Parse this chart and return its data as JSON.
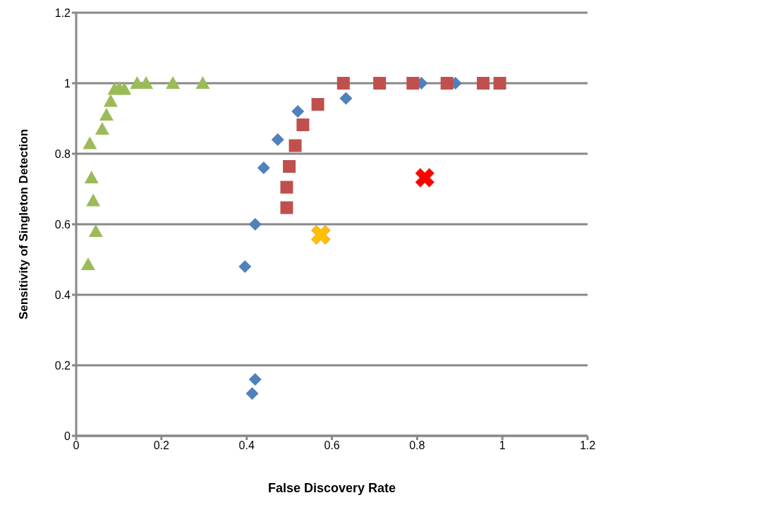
{
  "chart_data": {
    "type": "scatter",
    "xlabel": "False Discovery Rate",
    "ylabel": "Sensitivity of Singleton Detection",
    "xlim": [
      0,
      1.2
    ],
    "ylim": [
      0,
      1.2
    ],
    "xticks": [
      0,
      0.2,
      0.4,
      0.6,
      0.8,
      1,
      1.2
    ],
    "yticks": [
      0,
      0.2,
      0.4,
      0.6,
      0.8,
      1,
      1.2
    ],
    "grid": "y",
    "series": [
      {
        "color": "#4f81bd",
        "marker": "diamond",
        "x": [
          0.396,
          0.42,
          0.44,
          0.473,
          0.52,
          0.633,
          0.81,
          0.89,
          0.42,
          0.413
        ],
        "values": [
          0.48,
          0.6,
          0.76,
          0.84,
          0.92,
          0.957,
          1,
          1,
          0.16,
          0.12
        ]
      },
      {
        "color": "#c0504d",
        "marker": "square",
        "x": [
          0.494,
          0.494,
          0.5,
          0.514,
          0.532,
          0.567,
          0.627,
          0.712,
          0.79,
          0.87,
          0.955,
          0.994
        ],
        "values": [
          0.647,
          0.705,
          0.764,
          0.823,
          0.882,
          0.94,
          1,
          1,
          1,
          1,
          1,
          1
        ]
      },
      {
        "color": "#9bbb59",
        "marker": "triangle",
        "x": [
          0.028,
          0.046,
          0.04,
          0.036,
          0.032,
          0.061,
          0.071,
          0.081,
          0.09,
          0.101,
          0.113,
          0.143,
          0.164,
          0.227,
          0.297
        ],
        "values": [
          0.486,
          0.58,
          0.667,
          0.732,
          0.829,
          0.87,
          0.91,
          0.949,
          0.983,
          0.985,
          0.983,
          1,
          1,
          1,
          1
        ]
      },
      {
        "color": "#ff0000",
        "marker": "cross",
        "x": [
          0.818
        ],
        "values": [
          0.732
        ]
      },
      {
        "color": "#ffc000",
        "marker": "cross",
        "x": [
          0.574
        ],
        "values": [
          0.57
        ]
      }
    ]
  }
}
